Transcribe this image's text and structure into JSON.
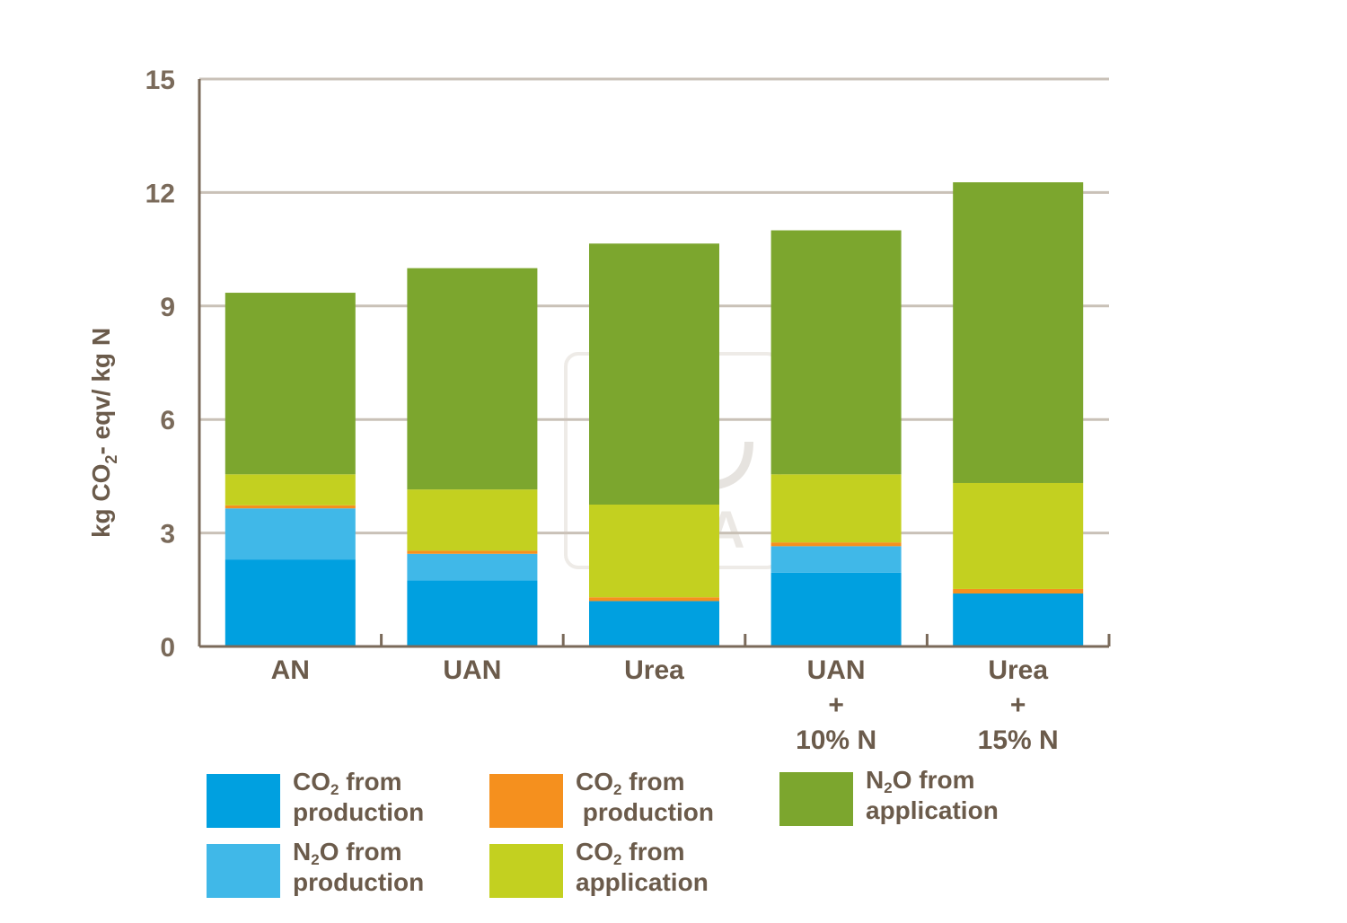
{
  "chart_data": {
    "type": "bar",
    "stacked": true,
    "ylabel": "kg CO2- eqv/ kg N",
    "ylim": [
      0,
      15
    ],
    "yticks": [
      "0",
      "3",
      "6",
      "9",
      "12",
      "15"
    ],
    "grid": true,
    "categories": [
      [
        "AN"
      ],
      [
        "UAN"
      ],
      [
        "Urea"
      ],
      [
        "UAN",
        "+",
        "10% N"
      ],
      [
        "Urea",
        "+",
        "15% N"
      ]
    ],
    "series": [
      {
        "key": "co2_prod",
        "color": "#00a0e0",
        "values": [
          2.3,
          1.75,
          1.2,
          1.95,
          1.4
        ]
      },
      {
        "key": "n2o_prod",
        "color": "#40b8e8",
        "values": [
          1.35,
          0.7,
          0.0,
          0.7,
          0.0
        ]
      },
      {
        "key": "co2_prod_orange",
        "color": "#f5901e",
        "values": [
          0.08,
          0.08,
          0.1,
          0.1,
          0.12
        ]
      },
      {
        "key": "co2_app",
        "color": "#c3d020",
        "values": [
          0.82,
          1.62,
          2.45,
          1.8,
          2.8
        ]
      },
      {
        "key": "n2o_app",
        "color": "#7ca62e",
        "values": [
          4.8,
          5.85,
          6.9,
          6.45,
          7.95
        ]
      }
    ],
    "legend": [
      {
        "color": "#00a0e0",
        "line1": [
          "CO",
          "2",
          " from"
        ],
        "line2": "production"
      },
      {
        "color": "#f5901e",
        "line1": [
          "CO",
          "2",
          " from"
        ],
        "line2": " production"
      },
      {
        "color": "#7ca62e",
        "line1": [
          "N",
          "2",
          "O from"
        ],
        "line2": "application"
      },
      {
        "color": "#40b8e8",
        "line1": [
          "N",
          "2",
          "O from"
        ],
        "line2": "production"
      },
      {
        "color": "#c3d020",
        "line1": [
          "CO",
          "2",
          " from"
        ],
        "line2": "application"
      }
    ]
  },
  "watermark": {
    "text": "YARA"
  }
}
